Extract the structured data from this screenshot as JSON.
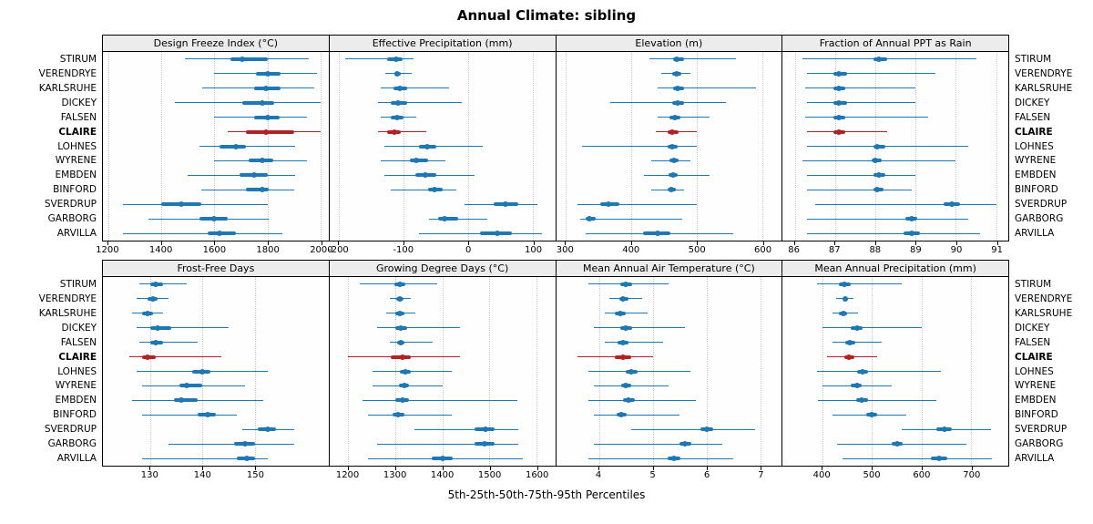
{
  "chart_data": {
    "type": "percentile-dotplot",
    "title": "Annual Climate: sibling",
    "xlabel": "5th-25th-50th-75th-95th Percentiles",
    "percentiles": [
      5,
      25,
      50,
      75,
      95
    ],
    "series_color": "#1f77b4",
    "highlight_color": "#b22222",
    "highlight_station": "CLAIRE",
    "grid": "dotted-vertical",
    "stations": [
      "STIRUM",
      "VERENDRYE",
      "KARLSRUHE",
      "DICKEY",
      "FALSEN",
      "CLAIRE",
      "LOHNES",
      "WYRENE",
      "EMBDEN",
      "BINFORD",
      "SVERDRUP",
      "GARBORG",
      "ARVILLA"
    ],
    "panels": [
      {
        "title": "Design Freeze Index (°C)",
        "row": 0,
        "xlim": [
          1180,
          2030
        ],
        "ticks": [
          1200,
          1400,
          1600,
          1800,
          2000
        ],
        "tick_labels": [
          "1200",
          "1400",
          "1600",
          "1800",
          "2000"
        ],
        "values": {
          "STIRUM": [
            1490,
            1660,
            1705,
            1800,
            1955
          ],
          "VERENDRYE": [
            1600,
            1755,
            1800,
            1850,
            1985
          ],
          "KARLSRUHE": [
            1555,
            1750,
            1795,
            1850,
            1975
          ],
          "DICKEY": [
            1450,
            1705,
            1780,
            1825,
            2000
          ],
          "FALSEN": [
            1600,
            1750,
            1800,
            1845,
            1950
          ],
          "CLAIRE": [
            1650,
            1720,
            1795,
            1900,
            2000
          ],
          "LOHNES": [
            1545,
            1620,
            1680,
            1720,
            1905
          ],
          "WYRENE": [
            1600,
            1730,
            1780,
            1820,
            1950
          ],
          "EMBDEN": [
            1500,
            1695,
            1750,
            1800,
            1905
          ],
          "BINFORD": [
            1550,
            1720,
            1780,
            1805,
            1900
          ],
          "SVERDRUP": [
            1255,
            1400,
            1475,
            1550,
            1800
          ],
          "GARBORG": [
            1350,
            1545,
            1600,
            1650,
            1805
          ],
          "ARVILLA": [
            1255,
            1575,
            1620,
            1680,
            1855
          ]
        }
      },
      {
        "title": "Effective Precipitation (mm)",
        "row": 0,
        "xlim": [
          -215,
          135
        ],
        "ticks": [
          -200,
          -100,
          0,
          100
        ],
        "tick_labels": [
          "-200",
          "-100",
          "0",
          "100"
        ],
        "values": {
          "STIRUM": [
            -190,
            -125,
            -112,
            -102,
            -85
          ],
          "VERENDRYE": [
            -128,
            -115,
            -110,
            -104,
            -88
          ],
          "KARLSRUHE": [
            -135,
            -116,
            -106,
            -95,
            -30
          ],
          "DICKEY": [
            -140,
            -120,
            -108,
            -94,
            -10
          ],
          "FALSEN": [
            -135,
            -120,
            -110,
            -100,
            -80
          ],
          "CLAIRE": [
            -140,
            -126,
            -115,
            -104,
            -65
          ],
          "LOHNES": [
            -130,
            -76,
            -64,
            -50,
            22
          ],
          "WYRENE": [
            -136,
            -90,
            -80,
            -62,
            -35
          ],
          "EMBDEN": [
            -130,
            -82,
            -66,
            -50,
            10
          ],
          "BINFORD": [
            -120,
            -62,
            -52,
            -40,
            -18
          ],
          "SVERDRUP": [
            -5,
            40,
            58,
            78,
            108
          ],
          "GARBORG": [
            -60,
            -46,
            -36,
            -16,
            30
          ],
          "ARVILLA": [
            -76,
            18,
            45,
            68,
            115
          ]
        }
      },
      {
        "title": "Elevation (m)",
        "row": 0,
        "xlim": [
          285,
          630
        ],
        "ticks": [
          300,
          400,
          500,
          600
        ],
        "tick_labels": [
          "300",
          "400",
          "500",
          "600"
        ],
        "values": {
          "STIRUM": [
            428,
            464,
            470,
            480,
            560
          ],
          "VERENDRYE": [
            446,
            463,
            469,
            476,
            491
          ],
          "KARLSRUHE": [
            440,
            464,
            471,
            480,
            590
          ],
          "DICKEY": [
            368,
            463,
            471,
            481,
            545
          ],
          "FALSEN": [
            440,
            459,
            467,
            475,
            519
          ],
          "CLAIRE": [
            438,
            455,
            463,
            472,
            500
          ],
          "LOHNES": [
            325,
            455,
            463,
            471,
            500
          ],
          "WYRENE": [
            430,
            459,
            466,
            473,
            491
          ],
          "EMBDEN": [
            420,
            457,
            464,
            471,
            519
          ],
          "BINFORD": [
            430,
            455,
            461,
            468,
            481
          ],
          "SVERDRUP": [
            318,
            352,
            365,
            382,
            500
          ],
          "GARBORG": [
            322,
            330,
            336,
            345,
            478
          ],
          "ARVILLA": [
            330,
            418,
            440,
            460,
            556
          ]
        }
      },
      {
        "title": "Fraction of Annual PPT as Rain",
        "row": 0,
        "xlim": [
          85.7,
          91.3
        ],
        "ticks": [
          86,
          87,
          88,
          89,
          90,
          91
        ],
        "tick_labels": [
          "86",
          "87",
          "88",
          "89",
          "90",
          "91"
        ],
        "values": {
          "STIRUM": [
            86.2,
            87.95,
            88.1,
            88.3,
            90.5
          ],
          "VERENDRYE": [
            86.3,
            86.95,
            87.1,
            87.3,
            89.5
          ],
          "KARLSRUHE": [
            86.25,
            86.95,
            87.1,
            87.25,
            89.0
          ],
          "DICKEY": [
            86.3,
            86.95,
            87.1,
            87.3,
            89.0
          ],
          "FALSEN": [
            86.25,
            86.95,
            87.1,
            87.25,
            89.3
          ],
          "CLAIRE": [
            86.3,
            86.95,
            87.1,
            87.25,
            88.3
          ],
          "LOHNES": [
            86.3,
            87.95,
            88.05,
            88.25,
            90.3
          ],
          "WYRENE": [
            86.2,
            87.9,
            88.0,
            88.15,
            90.0
          ],
          "EMBDEN": [
            86.3,
            87.95,
            88.1,
            88.25,
            89.0
          ],
          "BINFORD": [
            86.3,
            87.95,
            88.05,
            88.2,
            88.9
          ],
          "SVERDRUP": [
            86.5,
            89.7,
            89.9,
            90.1,
            91.0
          ],
          "GARBORG": [
            86.3,
            88.75,
            88.9,
            89.05,
            90.3
          ],
          "ARVILLA": [
            86.3,
            88.7,
            88.9,
            89.1,
            90.6
          ]
        }
      },
      {
        "title": "Frost-Free Days",
        "row": 1,
        "xlim": [
          121,
          164
        ],
        "ticks": [
          130,
          140,
          150
        ],
        "tick_labels": [
          "130",
          "140",
          "150"
        ],
        "values": {
          "STIRUM": [
            128,
            130,
            131,
            132.5,
            137
          ],
          "VERENDRYE": [
            127.5,
            129.5,
            130.5,
            131.5,
            133.5
          ],
          "KARLSRUHE": [
            126.5,
            128.5,
            129.5,
            130.5,
            132.5
          ],
          "DICKEY": [
            127.5,
            130,
            131.5,
            134,
            145
          ],
          "FALSEN": [
            128,
            130,
            131,
            132.5,
            139
          ],
          "CLAIRE": [
            126,
            128.5,
            129.5,
            131,
            143.5
          ],
          "LOHNES": [
            127.5,
            138,
            140,
            141.5,
            152.5
          ],
          "WYRENE": [
            128.5,
            135.5,
            137,
            140,
            148
          ],
          "EMBDEN": [
            126.5,
            134.5,
            136,
            139,
            151.5
          ],
          "BINFORD": [
            128.5,
            139,
            141,
            142.5,
            146.5
          ],
          "SVERDRUP": [
            147.5,
            150.5,
            152.5,
            154,
            157.5
          ],
          "GARBORG": [
            133.5,
            146,
            148,
            150,
            157.5
          ],
          "ARVILLA": [
            128.5,
            146.5,
            148.5,
            150,
            152.5
          ]
        }
      },
      {
        "title": "Growing Degree Days (°C)",
        "row": 1,
        "xlim": [
          1160,
          1640
        ],
        "ticks": [
          1200,
          1300,
          1400,
          1500,
          1600
        ],
        "tick_labels": [
          "1200",
          "1300",
          "1400",
          "1500",
          "1600"
        ],
        "values": {
          "STIRUM": [
            1225,
            1298,
            1310,
            1322,
            1390
          ],
          "VERENDRYE": [
            1288,
            1302,
            1310,
            1318,
            1332
          ],
          "KARLSRUHE": [
            1280,
            1300,
            1310,
            1320,
            1342
          ],
          "DICKEY": [
            1262,
            1300,
            1312,
            1325,
            1438
          ],
          "FALSEN": [
            1288,
            1303,
            1311,
            1320,
            1380
          ],
          "CLAIRE": [
            1200,
            1290,
            1315,
            1332,
            1438
          ],
          "LOHNES": [
            1252,
            1310,
            1322,
            1333,
            1420
          ],
          "WYRENE": [
            1252,
            1308,
            1320,
            1330,
            1400
          ],
          "EMBDEN": [
            1230,
            1300,
            1315,
            1330,
            1560
          ],
          "BINFORD": [
            1242,
            1295,
            1306,
            1320,
            1420
          ],
          "SVERDRUP": [
            1340,
            1468,
            1492,
            1512,
            1562
          ],
          "GARBORG": [
            1262,
            1468,
            1490,
            1512,
            1562
          ],
          "ARVILLA": [
            1242,
            1378,
            1400,
            1422,
            1572
          ]
        }
      },
      {
        "title": "Mean Annual Air Temperature (°C)",
        "row": 1,
        "xlim": [
          3.2,
          7.4
        ],
        "ticks": [
          4,
          5,
          6,
          7
        ],
        "tick_labels": [
          "4",
          "5",
          "6",
          "7"
        ],
        "values": {
          "STIRUM": [
            3.8,
            4.4,
            4.5,
            4.62,
            5.3
          ],
          "VERENDRYE": [
            4.2,
            4.37,
            4.45,
            4.55,
            4.8
          ],
          "KARLSRUHE": [
            4.1,
            4.3,
            4.4,
            4.5,
            4.9
          ],
          "DICKEY": [
            3.9,
            4.4,
            4.5,
            4.62,
            5.6
          ],
          "FALSEN": [
            4.1,
            4.35,
            4.45,
            4.55,
            5.2
          ],
          "CLAIRE": [
            3.6,
            4.3,
            4.45,
            4.6,
            5.0
          ],
          "LOHNES": [
            3.8,
            4.5,
            4.6,
            4.72,
            5.7
          ],
          "WYRENE": [
            3.9,
            4.42,
            4.5,
            4.6,
            5.3
          ],
          "EMBDEN": [
            3.8,
            4.45,
            4.55,
            4.67,
            5.8
          ],
          "BINFORD": [
            3.9,
            4.33,
            4.42,
            4.52,
            5.5
          ],
          "SVERDRUP": [
            4.6,
            5.88,
            6.0,
            6.12,
            6.9
          ],
          "GARBORG": [
            3.9,
            5.5,
            5.6,
            5.72,
            6.3
          ],
          "ARVILLA": [
            3.8,
            5.28,
            5.4,
            5.52,
            6.5
          ]
        }
      },
      {
        "title": "Mean Annual Precipitation (mm)",
        "row": 1,
        "xlim": [
          320,
          775
        ],
        "ticks": [
          400,
          500,
          600,
          700
        ],
        "tick_labels": [
          "400",
          "500",
          "600",
          "700"
        ],
        "values": {
          "STIRUM": [
            390,
            433,
            445,
            457,
            560
          ],
          "VERENDRYE": [
            428,
            440,
            446,
            452,
            462
          ],
          "KARLSRUHE": [
            420,
            434,
            442,
            450,
            472
          ],
          "DICKEY": [
            400,
            458,
            470,
            482,
            600
          ],
          "FALSEN": [
            420,
            446,
            456,
            466,
            520
          ],
          "CLAIRE": [
            410,
            444,
            453,
            464,
            510
          ],
          "LOHNES": [
            390,
            470,
            481,
            492,
            640
          ],
          "WYRENE": [
            400,
            458,
            470,
            480,
            540
          ],
          "EMBDEN": [
            392,
            468,
            480,
            492,
            630
          ],
          "BINFORD": [
            420,
            489,
            500,
            511,
            570
          ],
          "SVERDRUP": [
            560,
            630,
            646,
            662,
            740
          ],
          "GARBORG": [
            430,
            540,
            551,
            562,
            690
          ],
          "ARVILLA": [
            440,
            618,
            636,
            652,
            742
          ]
        }
      }
    ]
  }
}
